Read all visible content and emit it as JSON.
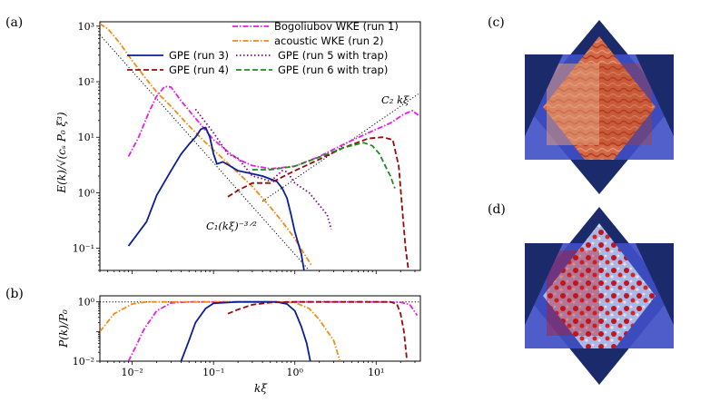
{
  "chart_data": [
    {
      "type": "line",
      "panel": "(a)",
      "scale": "loglog",
      "xlim": [
        0.004,
        35
      ],
      "ylim": [
        0.04,
        1200
      ],
      "xticks": [
        {
          "v": 0.01,
          "label": "10⁻²"
        },
        {
          "v": 0.1,
          "label": "10⁻¹"
        },
        {
          "v": 1,
          "label": "10⁰"
        },
        {
          "v": 10,
          "label": "10¹"
        }
      ],
      "yticks": [
        {
          "v": 0.1,
          "label": "10⁻¹"
        },
        {
          "v": 1,
          "label": "10⁰"
        },
        {
          "v": 10,
          "label": "10¹"
        },
        {
          "v": 100,
          "label": "10²"
        },
        {
          "v": 1000,
          "label": "10³"
        }
      ],
      "ylabel": "E(k)/√(cₛ P₀ ξ³)",
      "annotations": [
        "C₂ kξ",
        "C₁(kξ)⁻³ᐟ²"
      ],
      "series": [
        {
          "name": "Bogoliubov WKE (run 1)",
          "color": "#e61ee6",
          "dash": "dashdot",
          "points": [
            [
              0.009,
              4.5
            ],
            [
              0.012,
              10
            ],
            [
              0.016,
              28
            ],
            [
              0.02,
              55
            ],
            [
              0.025,
              82
            ],
            [
              0.03,
              80
            ],
            [
              0.04,
              45
            ],
            [
              0.06,
              22
            ],
            [
              0.1,
              9
            ],
            [
              0.15,
              5.5
            ],
            [
              0.2,
              4
            ],
            [
              0.3,
              3.1
            ],
            [
              0.5,
              2.7
            ],
            [
              1,
              3
            ],
            [
              2,
              4.5
            ],
            [
              4,
              7.5
            ],
            [
              8,
              12
            ],
            [
              15,
              18
            ],
            [
              22,
              26
            ],
            [
              28,
              30
            ],
            [
              33,
              25
            ]
          ]
        },
        {
          "name": "acoustic WKE (run 2)",
          "color": "#f08c14",
          "dash": "dashdot",
          "points": [
            [
              0.004,
              1100
            ],
            [
              0.005,
              900
            ],
            [
              0.007,
              500
            ],
            [
              0.01,
              240
            ],
            [
              0.015,
              110
            ],
            [
              0.02,
              65
            ],
            [
              0.03,
              36
            ],
            [
              0.05,
              16
            ],
            [
              0.08,
              8
            ],
            [
              0.12,
              4.6
            ],
            [
              0.2,
              2.3
            ],
            [
              0.3,
              1.3
            ],
            [
              0.5,
              0.55
            ],
            [
              0.7,
              0.3
            ],
            [
              1,
              0.15
            ],
            [
              1.3,
              0.08
            ],
            [
              1.6,
              0.05
            ]
          ]
        },
        {
          "name": "GPE (run 3)",
          "color": "#0a1e96",
          "dash": "solid",
          "points": [
            [
              0.009,
              0.11
            ],
            [
              0.015,
              0.3
            ],
            [
              0.02,
              0.9
            ],
            [
              0.03,
              2.5
            ],
            [
              0.04,
              5
            ],
            [
              0.05,
              7.5
            ],
            [
              0.06,
              10
            ],
            [
              0.07,
              14
            ],
            [
              0.08,
              15
            ],
            [
              0.09,
              10
            ],
            [
              0.1,
              5
            ],
            [
              0.11,
              3.3
            ],
            [
              0.13,
              3.6
            ],
            [
              0.15,
              3.2
            ],
            [
              0.2,
              2.5
            ],
            [
              0.3,
              2.2
            ],
            [
              0.4,
              2
            ],
            [
              0.6,
              1.6
            ],
            [
              0.7,
              1.2
            ],
            [
              0.8,
              0.8
            ],
            [
              0.9,
              0.4
            ],
            [
              1,
              0.2
            ],
            [
              1.2,
              0.08
            ],
            [
              1.3,
              0.04
            ]
          ]
        },
        {
          "name": "GPE (run 4)",
          "color": "#960a0a",
          "dash": "dashed",
          "points": [
            [
              0.15,
              0.85
            ],
            [
              0.2,
              1.1
            ],
            [
              0.3,
              1.5
            ],
            [
              0.5,
              1.5
            ],
            [
              1,
              2.5
            ],
            [
              2,
              4
            ],
            [
              4,
              6.5
            ],
            [
              8,
              9.5
            ],
            [
              12,
              10
            ],
            [
              16,
              9
            ],
            [
              19,
              3
            ],
            [
              21,
              0.5
            ],
            [
              23,
              0.1
            ],
            [
              25,
              0.04
            ]
          ]
        },
        {
          "name": "GPE (run 5 with trap)",
          "color": "#780a8c",
          "dash": "dotted",
          "points": [
            [
              0.06,
              32
            ],
            [
              0.1,
              12
            ],
            [
              0.15,
              5
            ],
            [
              0.2,
              4.2
            ],
            [
              0.3,
              2
            ],
            [
              0.4,
              1.8
            ],
            [
              0.5,
              1.6
            ],
            [
              0.7,
              2.5
            ],
            [
              0.8,
              2.4
            ],
            [
              1,
              1.5
            ],
            [
              1.5,
              1
            ],
            [
              2,
              0.6
            ],
            [
              2.5,
              0.4
            ],
            [
              2.8,
              0.22
            ]
          ]
        },
        {
          "name": "GPE (run 6 with trap)",
          "color": "#1e8c1e",
          "dash": "dashed",
          "points": [
            [
              0.3,
              2.6
            ],
            [
              0.5,
              2.6
            ],
            [
              1,
              3
            ],
            [
              2,
              4.4
            ],
            [
              4,
              6.5
            ],
            [
              7,
              8
            ],
            [
              9,
              7
            ],
            [
              11,
              5
            ],
            [
              13,
              3
            ],
            [
              15,
              2
            ],
            [
              17,
              1.2
            ]
          ]
        }
      ],
      "references": [
        {
          "name": "C1 (k xi)^-3/2",
          "color": "#000000",
          "dash": "dotted",
          "points": [
            [
              0.004,
              700
            ],
            [
              1.5,
              0.04
            ]
          ]
        },
        {
          "name": "C2 k xi",
          "color": "#000000",
          "dash": "dotted",
          "points": [
            [
              0.4,
              0.7
            ],
            [
              33,
              60
            ]
          ]
        }
      ]
    },
    {
      "type": "line",
      "panel": "(b)",
      "scale": "loglog",
      "xlim": [
        0.004,
        35
      ],
      "ylim": [
        0.01,
        1.6
      ],
      "xticks": [
        {
          "v": 0.01,
          "label": "10⁻²"
        },
        {
          "v": 0.1,
          "label": "10⁻¹"
        },
        {
          "v": 1,
          "label": "10⁰"
        },
        {
          "v": 10,
          "label": "10¹"
        }
      ],
      "yticks": [
        {
          "v": 0.01,
          "label": "10⁻²"
        },
        {
          "v": 1,
          "label": "10⁰"
        }
      ],
      "ylabel": "P(k)/P₀",
      "xlabel": "kξ",
      "series": [
        {
          "name": "Bogoliubov WKE (run 1)",
          "color": "#e61ee6",
          "dash": "dashdot",
          "points": [
            [
              0.009,
              0.01
            ],
            [
              0.011,
              0.03
            ],
            [
              0.014,
              0.12
            ],
            [
              0.02,
              0.5
            ],
            [
              0.03,
              0.92
            ],
            [
              0.05,
              1
            ],
            [
              1,
              1
            ],
            [
              10,
              1
            ],
            [
              20,
              0.97
            ],
            [
              26,
              0.8
            ],
            [
              32,
              0.35
            ]
          ]
        },
        {
          "name": "acoustic WKE (run 2)",
          "color": "#f08c14",
          "dash": "dashdot",
          "points": [
            [
              0.004,
              0.1
            ],
            [
              0.006,
              0.4
            ],
            [
              0.01,
              0.85
            ],
            [
              0.015,
              1
            ],
            [
              0.5,
              1
            ],
            [
              1,
              0.95
            ],
            [
              1.5,
              0.6
            ],
            [
              2,
              0.25
            ],
            [
              3,
              0.05
            ],
            [
              3.6,
              0.01
            ]
          ]
        },
        {
          "name": "GPE (run 3)",
          "color": "#0a1e96",
          "dash": "solid",
          "points": [
            [
              0.04,
              0.01
            ],
            [
              0.05,
              0.05
            ],
            [
              0.06,
              0.2
            ],
            [
              0.08,
              0.6
            ],
            [
              0.1,
              0.9
            ],
            [
              0.2,
              1
            ],
            [
              0.6,
              1
            ],
            [
              0.8,
              0.85
            ],
            [
              1,
              0.5
            ],
            [
              1.2,
              0.15
            ],
            [
              1.4,
              0.04
            ],
            [
              1.55,
              0.01
            ]
          ]
        },
        {
          "name": "GPE (run 4)",
          "color": "#960a0a",
          "dash": "dashed",
          "points": [
            [
              0.15,
              0.4
            ],
            [
              0.2,
              0.55
            ],
            [
              0.3,
              0.8
            ],
            [
              0.5,
              0.95
            ],
            [
              1,
              1
            ],
            [
              15,
              1
            ],
            [
              18,
              0.85
            ],
            [
              20,
              0.4
            ],
            [
              22,
              0.1
            ],
            [
              24,
              0.01
            ]
          ]
        },
        {
          "name": "GPE (run 5 with trap)",
          "color": "#780a8c",
          "dash": "dotted",
          "points": []
        },
        {
          "name": "GPE (run 6 with trap)",
          "color": "#1e8c1e",
          "dash": "dashed",
          "points": []
        }
      ],
      "references": [
        {
          "name": "unity",
          "color": "#000000",
          "dash": "dotted",
          "points": [
            [
              0.004,
              1
            ],
            [
              35,
              1
            ]
          ]
        }
      ]
    }
  ],
  "legend": [
    {
      "label": "Bogoliubov WKE (run 1)",
      "color": "#e61ee6",
      "dash": "dashdot"
    },
    {
      "label": "acoustic WKE (run 2)",
      "color": "#f08c14",
      "dash": "dashdot"
    },
    {
      "label": "GPE (run 3)",
      "color": "#0a1e96",
      "dash": "solid"
    },
    {
      "label": "GPE (run 5 with trap)",
      "color": "#780a8c",
      "dash": "dotted"
    },
    {
      "label": "GPE (run 4)",
      "color": "#960a0a",
      "dash": "dashed"
    },
    {
      "label": "GPE (run 6 with trap)",
      "color": "#1e8c1e",
      "dash": "dashed"
    }
  ],
  "panel_labels": {
    "a": "(a)",
    "b": "(b)",
    "c": "(c)",
    "d": "(d)"
  },
  "colors": {
    "navy": "#1b2a6b",
    "blue": "#3f4fc6",
    "fieldRed": "#c84a2a",
    "fieldLight": "#e8b8a0"
  }
}
